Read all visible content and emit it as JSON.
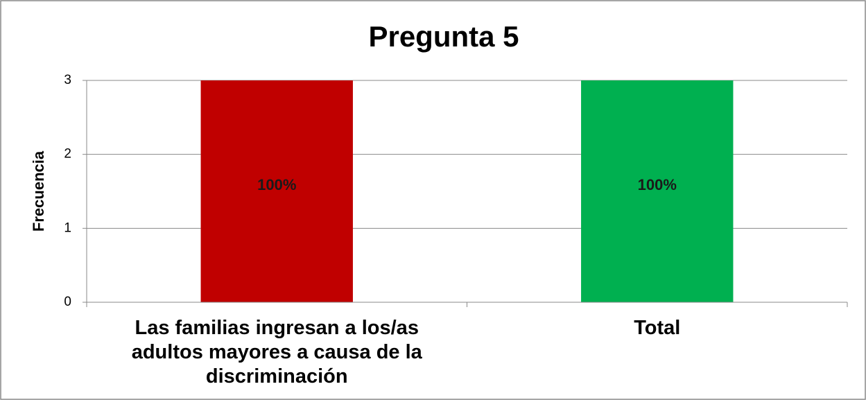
{
  "chart_data": {
    "type": "bar",
    "title": "Pregunta 5",
    "y_label": "Frecuencia",
    "categories": [
      "Las familias ingresan a los/as adultos mayores a causa de la discriminación",
      "Total"
    ],
    "values": [
      3,
      3
    ],
    "colors": [
      "#c00000",
      "#00b050"
    ],
    "shares": [
      100,
      100
    ],
    "share_labels": [
      "100%",
      "100%"
    ],
    "ylim": [
      0,
      3
    ],
    "yticks": [
      0,
      1,
      2,
      3
    ],
    "grid": true
  }
}
